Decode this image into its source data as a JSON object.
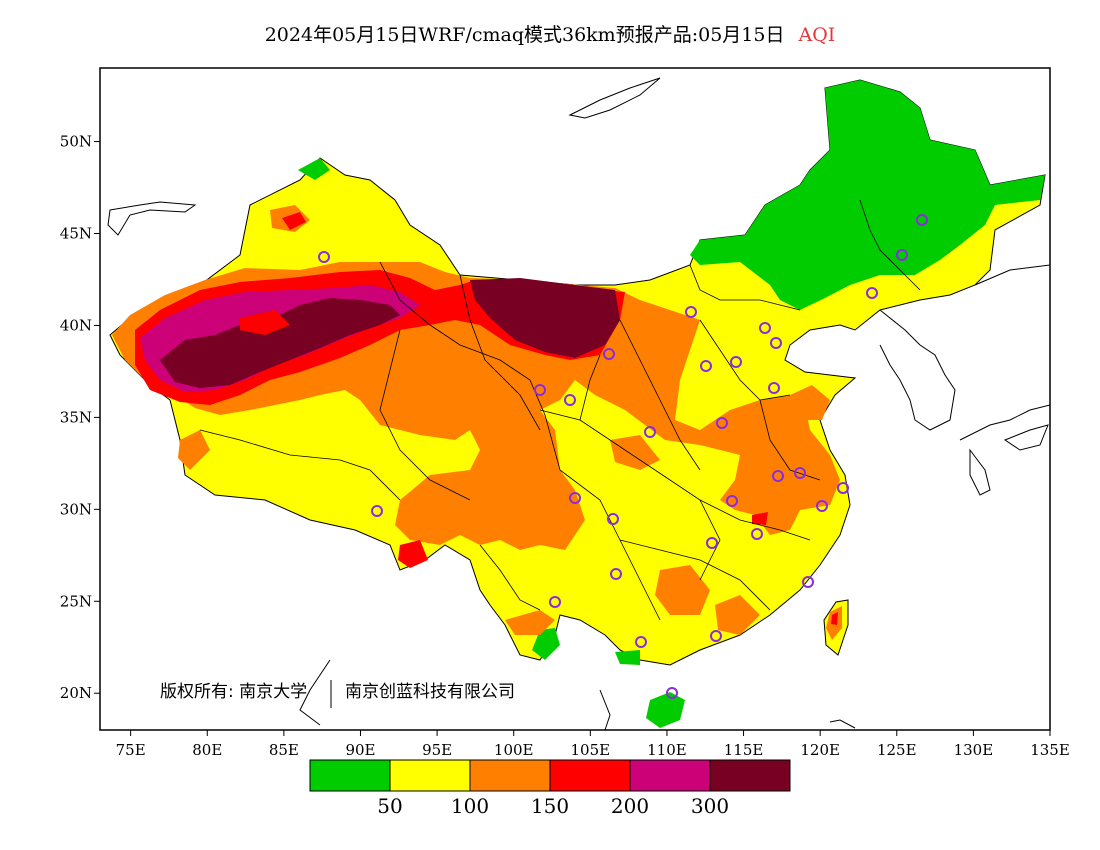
{
  "title": {
    "main": "2024年05月15日WRF/cmaq模式36km预报产品:05月15日",
    "variable": "AQI",
    "variable_color": "#e8373a"
  },
  "map": {
    "lon_ticks": [
      "75E",
      "80E",
      "85E",
      "90E",
      "95E",
      "100E",
      "105E",
      "110E",
      "115E",
      "120E",
      "125E",
      "130E",
      "135E"
    ],
    "lat_ticks": [
      "20N",
      "25N",
      "30N",
      "35N",
      "40N",
      "45N",
      "50N"
    ],
    "lon_range": [
      73,
      135
    ],
    "lat_range": [
      18,
      54
    ],
    "copyright": "版权所有: 南京大学",
    "copyright_org": "南京创蓝科技有限公司",
    "station_marker_color": "#8a2be2"
  },
  "colorbar": {
    "colors": [
      "#00cc00",
      "#ffff00",
      "#ff8000",
      "#ff0000",
      "#cc0077",
      "#780022"
    ],
    "labels": [
      "50",
      "100",
      "150",
      "200",
      "300"
    ]
  }
}
